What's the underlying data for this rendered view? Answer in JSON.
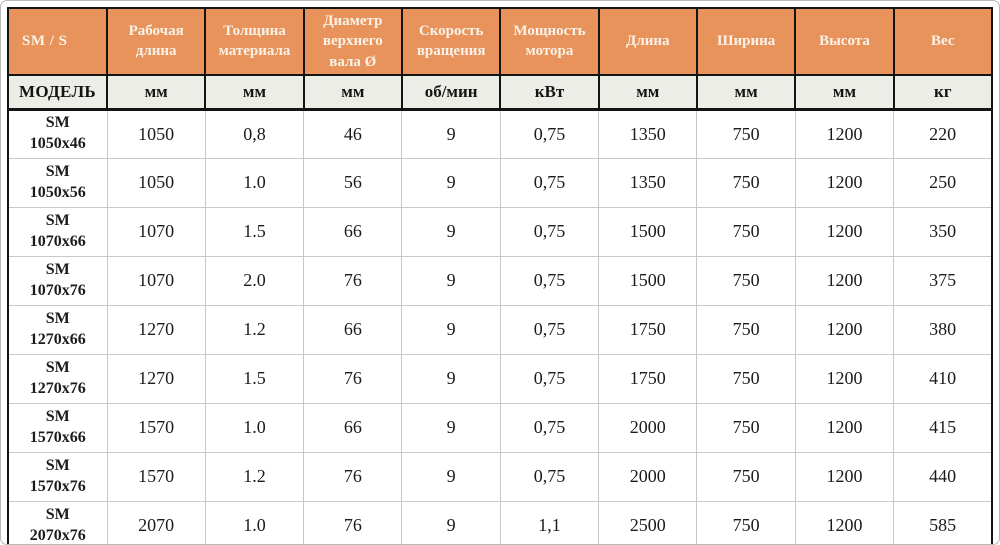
{
  "chart_data": {
    "type": "table",
    "title": "SM / S",
    "model_column_header": "МОДЕЛЬ",
    "columns": [
      "Рабочая длина",
      "Толщина материала",
      "Диаметр верхнего вала Ø",
      "Скорость вращения",
      "Мощность мотора",
      "Длина",
      "Ширина",
      "Высота",
      "Вес"
    ],
    "units": [
      "мм",
      "мм",
      "мм",
      "об/мин",
      "кВт",
      "мм",
      "мм",
      "мм",
      "кг"
    ],
    "rows": [
      {
        "model": [
          "SM",
          "1050x46"
        ],
        "values": [
          "1050",
          "0,8",
          "46",
          "9",
          "0,75",
          "1350",
          "750",
          "1200",
          "220"
        ]
      },
      {
        "model": [
          "SM",
          "1050x56"
        ],
        "values": [
          "1050",
          "1.0",
          "56",
          "9",
          "0,75",
          "1350",
          "750",
          "1200",
          "250"
        ]
      },
      {
        "model": [
          "SM",
          "1070x66"
        ],
        "values": [
          "1070",
          "1.5",
          "66",
          "9",
          "0,75",
          "1500",
          "750",
          "1200",
          "350"
        ]
      },
      {
        "model": [
          "SM",
          "1070x76"
        ],
        "values": [
          "1070",
          "2.0",
          "76",
          "9",
          "0,75",
          "1500",
          "750",
          "1200",
          "375"
        ]
      },
      {
        "model": [
          "SM",
          "1270x66"
        ],
        "values": [
          "1270",
          "1.2",
          "66",
          "9",
          "0,75",
          "1750",
          "750",
          "1200",
          "380"
        ]
      },
      {
        "model": [
          "SM",
          "1270x76"
        ],
        "values": [
          "1270",
          "1.5",
          "76",
          "9",
          "0,75",
          "1750",
          "750",
          "1200",
          "410"
        ]
      },
      {
        "model": [
          "SM",
          "1570x66"
        ],
        "values": [
          "1570",
          "1.0",
          "66",
          "9",
          "0,75",
          "2000",
          "750",
          "1200",
          "415"
        ]
      },
      {
        "model": [
          "SM",
          "1570x76"
        ],
        "values": [
          "1570",
          "1.2",
          "76",
          "9",
          "0,75",
          "2000",
          "750",
          "1200",
          "440"
        ]
      },
      {
        "model": [
          "SM",
          "2070x76"
        ],
        "values": [
          "2070",
          "1.0",
          "76",
          "9",
          "1,1",
          "2500",
          "750",
          "1200",
          "585"
        ]
      }
    ]
  },
  "colors": {
    "header_bg": "#E8935B",
    "header_text": "#FAF2E8",
    "units_bg": "#EDEDE8",
    "grid_line": "#C9C9C9",
    "frame_line": "#141414"
  }
}
